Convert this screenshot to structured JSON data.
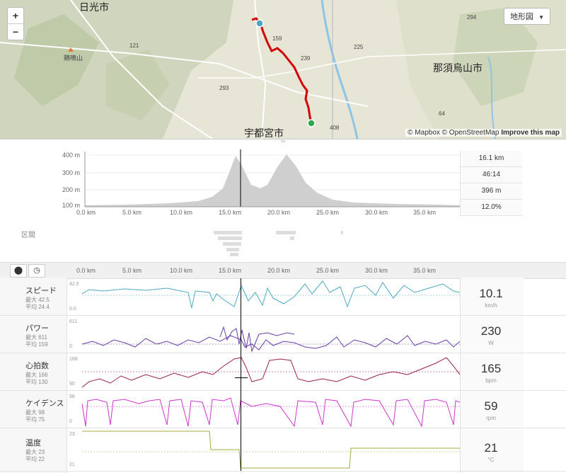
{
  "map": {
    "zoom_in": "+",
    "zoom_out": "−",
    "layer_button": "地形図",
    "attribution_prefix": "© Mapbox © OpenStreetMap",
    "attribution_link": "Improve this map",
    "labels": [
      {
        "text": "日光市",
        "big": true
      },
      {
        "text": "宇都宮市",
        "big": true
      },
      {
        "text": "那須烏山市",
        "big": true
      },
      {
        "text": "鶏鳴山",
        "big": false
      },
      {
        "text": "121",
        "big": false
      },
      {
        "text": "159",
        "big": false
      },
      {
        "text": "239",
        "big": false
      },
      {
        "text": "293",
        "big": false
      },
      {
        "text": "408",
        "big": false
      },
      {
        "text": "294",
        "big": false
      },
      {
        "text": "225",
        "big": false
      },
      {
        "text": "64",
        "big": false
      }
    ]
  },
  "elevation": {
    "y_ticks": [
      "400 m",
      "300 m",
      "200 m",
      "100 m"
    ],
    "x_ticks": [
      "0.0 km",
      "5.0 km",
      "10.0 km",
      "15.0 km",
      "20.0 km",
      "25.0 km",
      "30.0 km",
      "35.0 km"
    ],
    "stats": [
      "16.1 km",
      "46:14",
      "396 m",
      "12.0%"
    ]
  },
  "section_label": "区間",
  "toolbar": {
    "pin_icon": "map-pin-icon",
    "clock_icon": "clock-icon",
    "x_ticks": [
      "0.0 km",
      "5.0 km",
      "10.0 km",
      "15.0 km",
      "20.0 km",
      "25.0 km",
      "30.0 km",
      "35.0 km"
    ]
  },
  "metrics": [
    {
      "label": "スピード",
      "max": "最大 42.5",
      "avg": "平均 24.4",
      "axis_max": "42.5",
      "axis_min": "0.0",
      "value": "10.1",
      "unit": "km/h",
      "color": "#4aa8c5"
    },
    {
      "label": "パワー",
      "max": "最大 611",
      "avg": "平均 159",
      "axis_max": "611",
      "axis_min": "0",
      "value": "230",
      "unit": "W",
      "color": "#6a3ea6"
    },
    {
      "label": "心拍数",
      "max": "最大 166",
      "avg": "平均 130",
      "axis_max": "166",
      "axis_min": "90",
      "value": "165",
      "unit": "bpm",
      "color": "#9a1e4a"
    },
    {
      "label": "ケイデンス",
      "max": "最大 98",
      "avg": "平均 75",
      "axis_max": "98",
      "axis_min": "0",
      "value": "59",
      "unit": "rpm",
      "color": "#cc33cc"
    },
    {
      "label": "温度",
      "max": "最大 23",
      "avg": "平均 22",
      "axis_max": "23",
      "axis_min": "21",
      "value": "21",
      "unit": "°C",
      "color": "#a6a83e"
    }
  ],
  "colors": {
    "route": "#d40000",
    "start": "#2ea84a",
    "end": "#4aa8c5",
    "elevation_fill": "#cfcfcf"
  }
}
